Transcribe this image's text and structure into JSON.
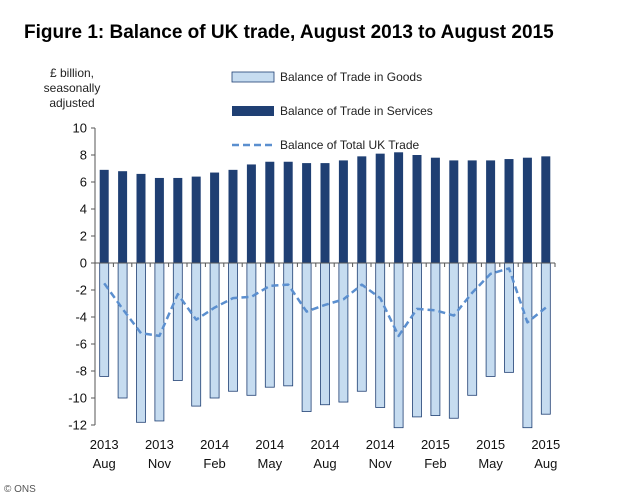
{
  "chart_data": {
    "type": "bar",
    "title": "Figure 1: Balance of UK trade, August 2013 to August 2015",
    "ylabel": "£ billion, seasonally adjusted",
    "ylim": [
      -12,
      10
    ],
    "yticks": [
      10,
      8,
      6,
      4,
      2,
      0,
      -2,
      -4,
      -6,
      -8,
      -10,
      -12
    ],
    "categories": [
      "2013 Aug",
      "2013 Sep",
      "2013 Oct",
      "2013 Nov",
      "2013 Dec",
      "2014 Jan",
      "2014 Feb",
      "2014 Mar",
      "2014 Apr",
      "2014 May",
      "2014 Jun",
      "2014 Jul",
      "2014 Aug",
      "2014 Sep",
      "2014 Oct",
      "2014 Nov",
      "2014 Dec",
      "2015 Jan",
      "2015 Feb",
      "2015 Mar",
      "2015 Apr",
      "2015 May",
      "2015 Jun",
      "2015 Jul",
      "2015 Aug"
    ],
    "xtick_labels": [
      {
        "index": 0,
        "year": "2013",
        "month": "Aug"
      },
      {
        "index": 3,
        "year": "2013",
        "month": "Nov"
      },
      {
        "index": 6,
        "year": "2014",
        "month": "Feb"
      },
      {
        "index": 9,
        "year": "2014",
        "month": "May"
      },
      {
        "index": 12,
        "year": "2014",
        "month": "Aug"
      },
      {
        "index": 15,
        "year": "2014",
        "month": "Nov"
      },
      {
        "index": 18,
        "year": "2015",
        "month": "Feb"
      },
      {
        "index": 21,
        "year": "2015",
        "month": "May"
      },
      {
        "index": 24,
        "year": "2015",
        "month": "Aug"
      }
    ],
    "series": [
      {
        "name": "Balance of Trade in Goods",
        "kind": "bar",
        "color": "#c6dcf0",
        "values": [
          -8.4,
          -10.0,
          -11.8,
          -11.7,
          -8.7,
          -10.6,
          -10.0,
          -9.5,
          -9.8,
          -9.2,
          -9.1,
          -11.0,
          -10.5,
          -10.3,
          -9.5,
          -10.7,
          -12.2,
          -11.4,
          -11.3,
          -11.5,
          -9.8,
          -8.4,
          -8.1,
          -12.2,
          -11.2
        ]
      },
      {
        "name": "Balance of Trade in Services",
        "kind": "bar",
        "color": "#1f3f73",
        "values": [
          6.9,
          6.8,
          6.6,
          6.3,
          6.3,
          6.4,
          6.7,
          6.9,
          7.3,
          7.5,
          7.5,
          7.4,
          7.4,
          7.6,
          7.9,
          8.1,
          8.2,
          8.0,
          7.8,
          7.6,
          7.6,
          7.6,
          7.7,
          7.8,
          7.9
        ]
      },
      {
        "name": "Balance of Total UK Trade",
        "kind": "line",
        "color": "#5b8fcf",
        "values": [
          -1.5,
          -3.4,
          -5.2,
          -5.4,
          -2.3,
          -4.2,
          -3.3,
          -2.6,
          -2.5,
          -1.7,
          -1.6,
          -3.6,
          -3.1,
          -2.7,
          -1.6,
          -2.6,
          -5.4,
          -3.4,
          -3.5,
          -3.9,
          -2.2,
          -0.8,
          -0.4,
          -4.4,
          -3.3
        ]
      }
    ]
  },
  "credit": "© ONS"
}
